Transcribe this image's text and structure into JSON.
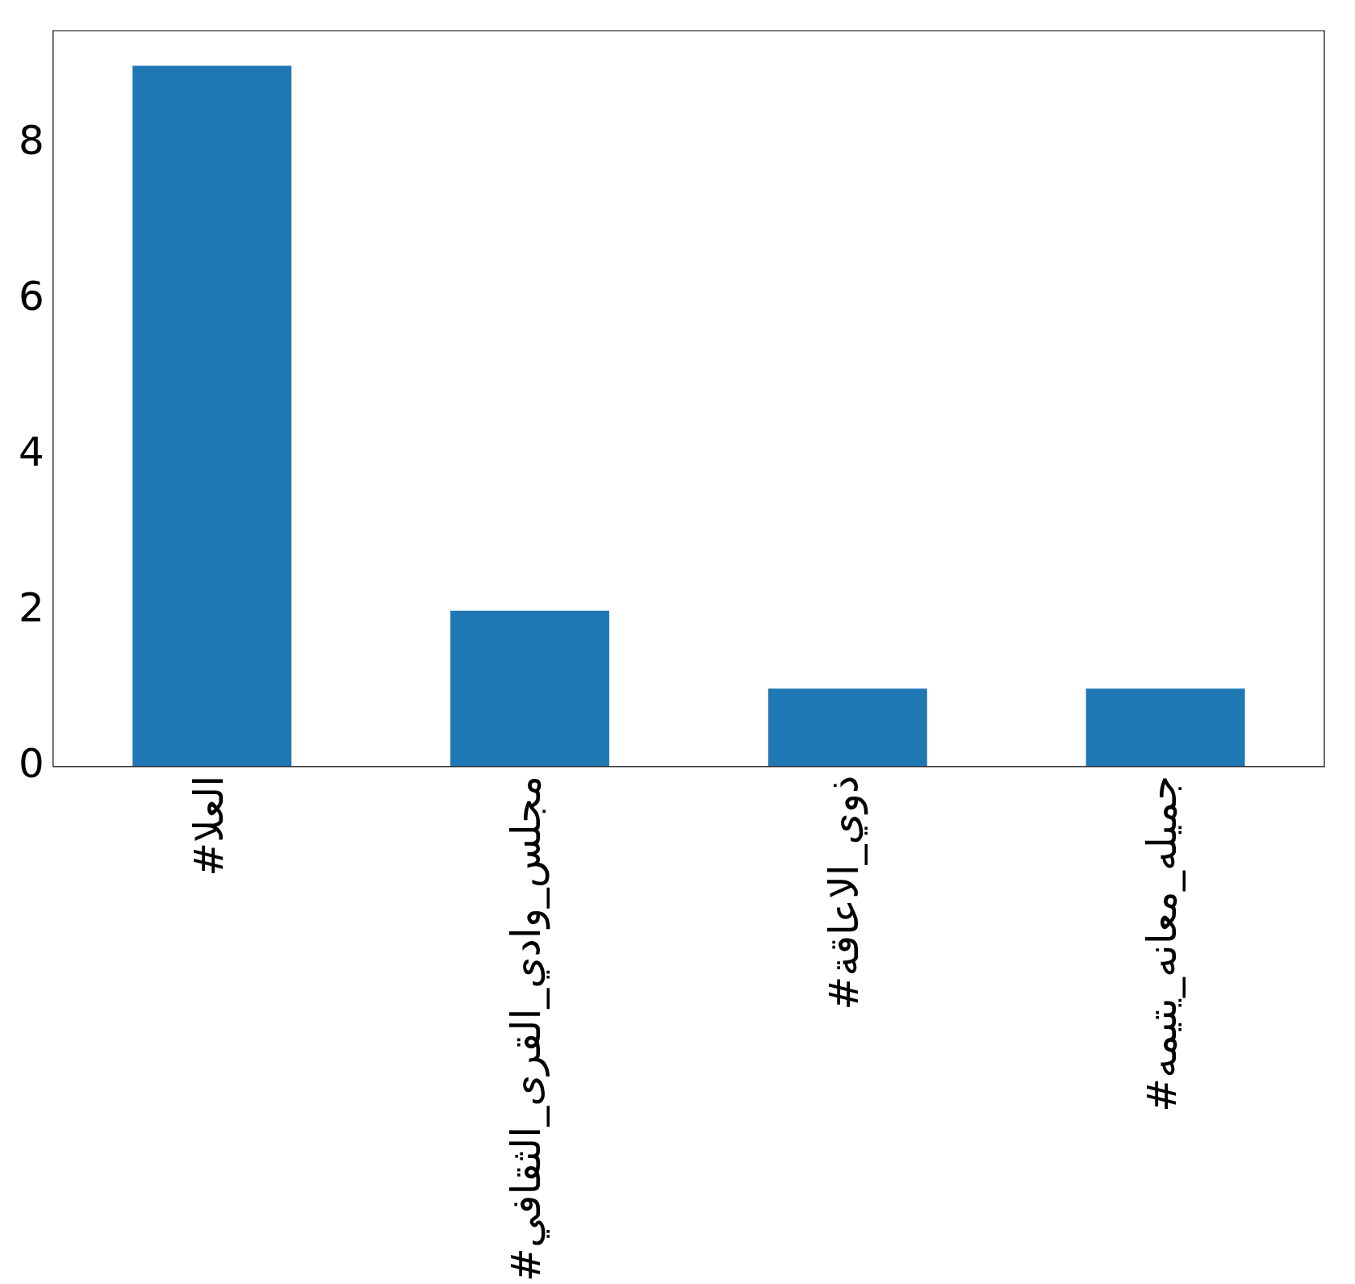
{
  "chart_data": {
    "type": "bar",
    "categories": [
      "#العلا",
      "#مجلس_وادي_القرى_الثقافي",
      "#ذوي_الاعاقة",
      "#جميله_معانه_يتيمه"
    ],
    "values": [
      9,
      2,
      1,
      1
    ],
    "color": "#1f77b4",
    "ylim": [
      0,
      9.45
    ],
    "yticks": [
      0,
      2,
      4,
      6,
      8
    ],
    "grid": false,
    "legend": false
  }
}
